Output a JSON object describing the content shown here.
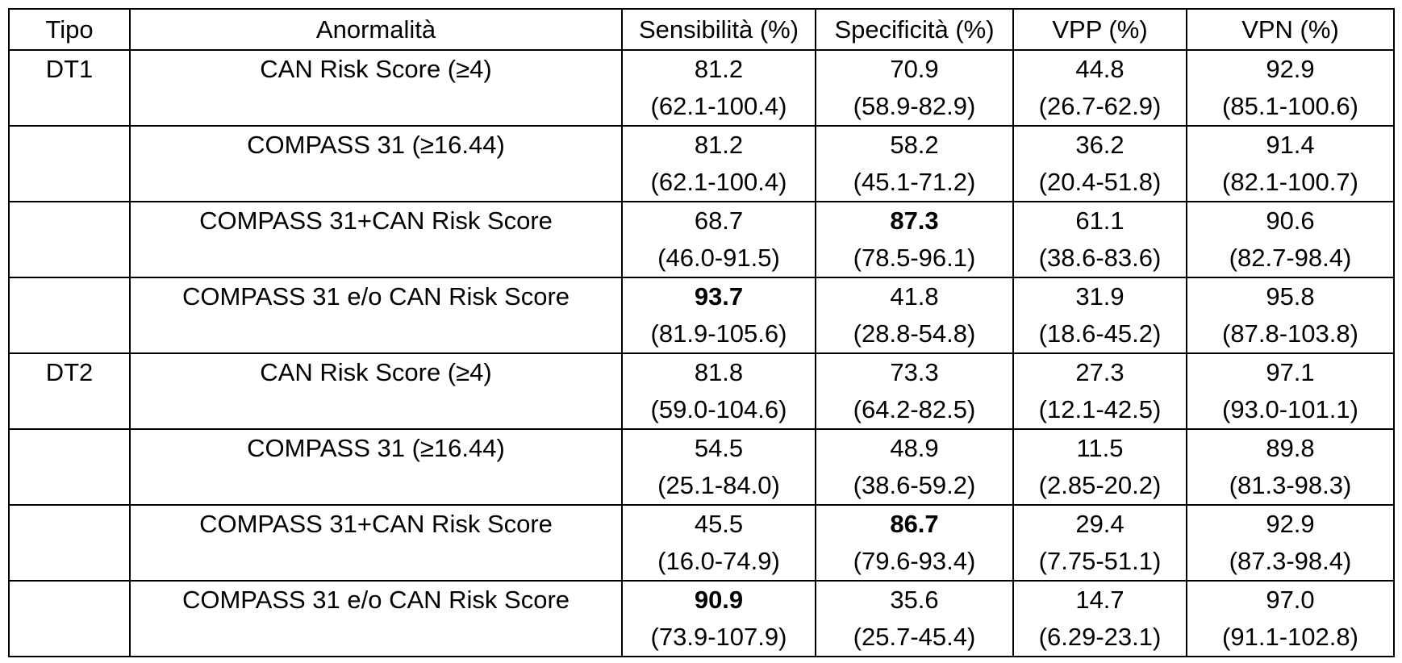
{
  "headers": {
    "tipo": "Tipo",
    "anormalita": "Anormalità",
    "sensibilita": "Sensibilità (%)",
    "specificita": "Specificità (%)",
    "vpp": "VPP (%)",
    "vpn": "VPN (%)"
  },
  "rows": [
    {
      "tipo": "DT1",
      "anormalita": "CAN Risk Score (≥4)",
      "sens": {
        "value": "81.2",
        "ci": "(62.1-100.4)"
      },
      "spec": {
        "value": "70.9",
        "ci": "(58.9-82.9)"
      },
      "vpp": {
        "value": "44.8",
        "ci": "(26.7-62.9)"
      },
      "vpn": {
        "value": "92.9",
        "ci": "(85.1-100.6)"
      }
    },
    {
      "tipo": "",
      "anormalita": "COMPASS 31 (≥16.44)",
      "sens": {
        "value": "81.2",
        "ci": "(62.1-100.4)"
      },
      "spec": {
        "value": "58.2",
        "ci": "(45.1-71.2)"
      },
      "vpp": {
        "value": "36.2",
        "ci": "(20.4-51.8)"
      },
      "vpn": {
        "value": "91.4",
        "ci": "(82.1-100.7)"
      }
    },
    {
      "tipo": "",
      "anormalita": "COMPASS 31+CAN Risk Score",
      "sens": {
        "value": "68.7",
        "ci": "(46.0-91.5)"
      },
      "spec": {
        "value": "87.3",
        "ci": "(78.5-96.1)",
        "bold": true
      },
      "vpp": {
        "value": "61.1",
        "ci": "(38.6-83.6)"
      },
      "vpn": {
        "value": "90.6",
        "ci": "(82.7-98.4)"
      }
    },
    {
      "tipo": "",
      "anormalita": "COMPASS 31 e/o CAN Risk Score",
      "sens": {
        "value": "93.7",
        "ci": "(81.9-105.6)",
        "bold": true
      },
      "spec": {
        "value": "41.8",
        "ci": "(28.8-54.8)"
      },
      "vpp": {
        "value": "31.9",
        "ci": "(18.6-45.2)"
      },
      "vpn": {
        "value": "95.8",
        "ci": "(87.8-103.8)"
      }
    },
    {
      "tipo": "DT2",
      "anormalita": "CAN Risk Score (≥4)",
      "sens": {
        "value": "81.8",
        "ci": "(59.0-104.6)"
      },
      "spec": {
        "value": "73.3",
        "ci": "(64.2-82.5)"
      },
      "vpp": {
        "value": "27.3",
        "ci": "(12.1-42.5)"
      },
      "vpn": {
        "value": "97.1",
        "ci": "(93.0-101.1)"
      }
    },
    {
      "tipo": "",
      "anormalita": "COMPASS 31 (≥16.44)",
      "sens": {
        "value": "54.5",
        "ci": "(25.1-84.0)"
      },
      "spec": {
        "value": "48.9",
        "ci": "(38.6-59.2)"
      },
      "vpp": {
        "value": "11.5",
        "ci": "(2.85-20.2)"
      },
      "vpn": {
        "value": "89.8",
        "ci": "(81.3-98.3)"
      }
    },
    {
      "tipo": "",
      "anormalita": "COMPASS 31+CAN Risk Score",
      "sens": {
        "value": "45.5",
        "ci": "(16.0-74.9)"
      },
      "spec": {
        "value": "86.7",
        "ci": "(79.6-93.4)",
        "bold": true
      },
      "vpp": {
        "value": "29.4",
        "ci": "(7.75-51.1)"
      },
      "vpn": {
        "value": "92.9",
        "ci": "(87.3-98.4)"
      }
    },
    {
      "tipo": "",
      "anormalita": "COMPASS 31 e/o CAN Risk Score",
      "sens": {
        "value": "90.9",
        "ci": "(73.9-107.9)",
        "bold": true
      },
      "spec": {
        "value": "35.6",
        "ci": "(25.7-45.4)"
      },
      "vpp": {
        "value": "14.7",
        "ci": "(6.29-23.1)"
      },
      "vpn": {
        "value": "97.0",
        "ci": "(91.1-102.8)"
      }
    }
  ]
}
